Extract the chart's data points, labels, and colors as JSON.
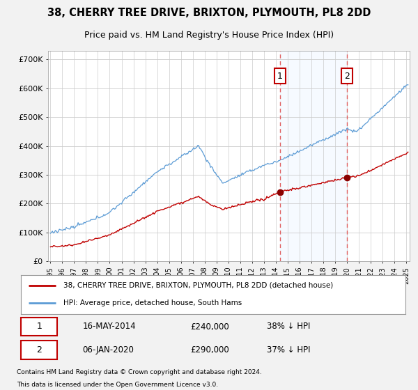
{
  "title": "38, CHERRY TREE DRIVE, BRIXTON, PLYMOUTH, PL8 2DD",
  "subtitle": "Price paid vs. HM Land Registry's House Price Index (HPI)",
  "title_fontsize": 10.5,
  "subtitle_fontsize": 9,
  "ytick_values": [
    0,
    100000,
    200000,
    300000,
    400000,
    500000,
    600000,
    700000
  ],
  "ylim": [
    0,
    730000
  ],
  "xlim_start": 1994.8,
  "xlim_end": 2025.3,
  "legend_line1": "38, CHERRY TREE DRIVE, BRIXTON, PLYMOUTH, PL8 2DD (detached house)",
  "legend_line2": "HPI: Average price, detached house, South Hams",
  "sale1_label": "1",
  "sale1_date_str": "16-MAY-2014",
  "sale1_price": 240000,
  "sale1_pct": "38% ↓ HPI",
  "sale1_year": 2014.37,
  "sale2_label": "2",
  "sale2_date_str": "06-JAN-2020",
  "sale2_price": 290000,
  "sale2_pct": "37% ↓ HPI",
  "sale2_year": 2020.02,
  "footer1": "Contains HM Land Registry data © Crown copyright and database right 2024.",
  "footer2": "This data is licensed under the Open Government Licence v3.0.",
  "hpi_color": "#5b9bd5",
  "price_color": "#c00000",
  "sale_dot_color": "#8b0000",
  "vline_color": "#e06060",
  "box_color": "#c00000",
  "shade_color": "#ddeeff",
  "background_color": "#f2f2f2",
  "plot_bg_color": "#ffffff",
  "grid_color": "#cccccc",
  "legend_border_color": "#999999"
}
